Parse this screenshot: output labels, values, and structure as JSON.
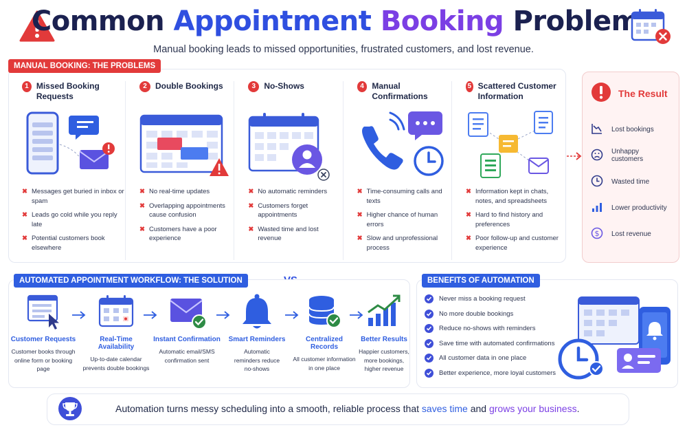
{
  "header": {
    "title_part1": "Common ",
    "title_part2": "Appointment ",
    "title_part3": "Booking",
    "title_part4": " Problems",
    "subtitle": "Manual booking leads to missed opportunities, frustrated customers, and lost revenue."
  },
  "problems": {
    "tag": "MANUAL BOOKING: THE PROBLEMS",
    "items": [
      {
        "num": "1",
        "title": "Missed Booking Requests",
        "bullets": [
          "Messages get buried in inbox or spam",
          "Leads go cold while you reply late",
          "Potential customers book elsewhere"
        ]
      },
      {
        "num": "2",
        "title": "Double Bookings",
        "bullets": [
          "No real-time updates",
          "Overlapping appointments cause confusion",
          "Customers have a poor experience"
        ]
      },
      {
        "num": "3",
        "title": "No-Shows",
        "bullets": [
          "No automatic reminders",
          "Customers forget appointments",
          "Wasted time and lost revenue"
        ]
      },
      {
        "num": "4",
        "title": "Manual Confirmations",
        "bullets": [
          "Time-consuming calls and texts",
          "Higher chance of human errors",
          "Slow and unprofessional process"
        ]
      },
      {
        "num": "5",
        "title": "Scattered Customer Information",
        "bullets": [
          "Information kept in chats, notes, and spreadsheets",
          "Hard to find history and preferences",
          "Poor follow-up and customer experience"
        ]
      }
    ]
  },
  "result": {
    "title": "The Result",
    "items": [
      "Lost bookings",
      "Unhappy customers",
      "Wasted time",
      "Lower productivity",
      "Lost revenue"
    ]
  },
  "vs_label": "VS",
  "solution": {
    "tag": "AUTOMATED APPOINTMENT WORKFLOW: THE SOLUTION",
    "steps": [
      {
        "title": "Customer Requests",
        "desc": "Customer books through online form or booking page"
      },
      {
        "title": "Real-Time Availability",
        "desc": "Up-to-date calendar prevents double bookings"
      },
      {
        "title": "Instant Confirmation",
        "desc": "Automatic email/SMS confirmation sent"
      },
      {
        "title": "Smart Reminders",
        "desc": "Automatic reminders reduce no-shows"
      },
      {
        "title": "Centralized Records",
        "desc": "All customer information in one place"
      },
      {
        "title": "Better Results",
        "desc": "Happier customers, more bookings, higher revenue"
      }
    ]
  },
  "benefits": {
    "tag": "BENEFITS OF AUTOMATION",
    "items": [
      "Never miss a booking request",
      "No more double bookings",
      "Reduce no-shows with reminders",
      "Save time with automated confirmations",
      "All customer data in one place",
      "Better experience, more loyal customers"
    ]
  },
  "footer": {
    "text_part1": "Automation turns messy scheduling into a smooth, reliable process that ",
    "text_part2": "saves time",
    "text_part3": " and ",
    "text_part4": "grows your business",
    "text_part5": "."
  },
  "colors": {
    "red": "#e23a3a",
    "blue": "#2f5ee0",
    "purple": "#7b3fe4",
    "navy": "#1b2150"
  }
}
